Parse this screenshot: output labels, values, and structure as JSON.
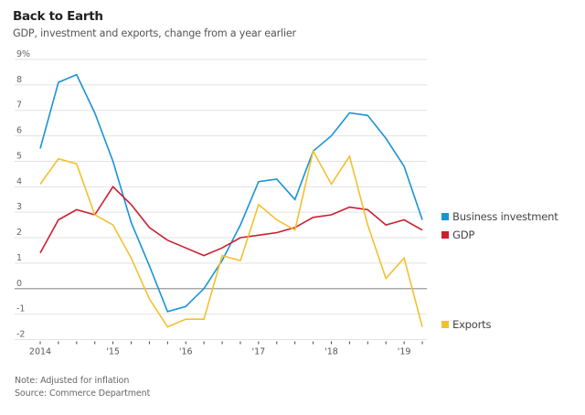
{
  "header": {
    "title": "Back to Earth",
    "subtitle": "GDP, investment and exports, change from a year earlier"
  },
  "footer": {
    "note": "Note: Adjusted for inflation",
    "source": "Source: Commerce Department"
  },
  "chart_data": {
    "type": "line",
    "title": "Back to Earth",
    "subtitle": "GDP, investment and exports, change from a year earlier",
    "xlabel": "",
    "ylabel": "",
    "unit": "%",
    "x": [
      "2014Q1",
      "2014Q2",
      "2014Q3",
      "2014Q4",
      "2015Q1",
      "2015Q2",
      "2015Q3",
      "2015Q4",
      "2016Q1",
      "2016Q2",
      "2016Q3",
      "2016Q4",
      "2017Q1",
      "2017Q2",
      "2017Q3",
      "2017Q4",
      "2018Q1",
      "2018Q2",
      "2018Q3",
      "2018Q4",
      "2019Q1",
      "2019Q2"
    ],
    "x_tick_labels": [
      {
        "index": 0,
        "label": "2014"
      },
      {
        "index": 4,
        "label": "'15"
      },
      {
        "index": 8,
        "label": "'16"
      },
      {
        "index": 12,
        "label": "'17"
      },
      {
        "index": 16,
        "label": "'18"
      },
      {
        "index": 20,
        "label": "'19"
      }
    ],
    "y_ticks": [
      9,
      8,
      7,
      6,
      5,
      4,
      3,
      2,
      1,
      0,
      -1,
      -2
    ],
    "y_tick_labels": [
      "9%",
      "8",
      "7",
      "6",
      "5",
      "4",
      "3",
      "2",
      "1",
      "0",
      "-1",
      "-2"
    ],
    "ylim": [
      -2,
      9
    ],
    "grid": true,
    "legend_placement": "right",
    "series": [
      {
        "name": "Business investment",
        "color": "#1a93d6",
        "values": [
          5.5,
          8.1,
          8.4,
          6.9,
          5.0,
          2.6,
          0.9,
          -0.9,
          -0.7,
          0.0,
          1.1,
          2.5,
          4.2,
          4.3,
          3.5,
          5.4,
          6.0,
          6.9,
          6.8,
          5.9,
          4.8,
          2.7
        ]
      },
      {
        "name": "GDP",
        "color": "#cc1f2f",
        "values": [
          1.4,
          2.7,
          3.1,
          2.9,
          4.0,
          3.3,
          2.4,
          1.9,
          1.6,
          1.3,
          1.6,
          2.0,
          2.1,
          2.2,
          2.4,
          2.8,
          2.9,
          3.2,
          3.1,
          2.5,
          2.7,
          2.3
        ]
      },
      {
        "name": "Exports",
        "color": "#f2c12e",
        "values": [
          4.1,
          5.1,
          4.9,
          2.9,
          2.5,
          1.2,
          -0.4,
          -1.5,
          -1.2,
          -1.2,
          1.3,
          1.1,
          3.3,
          2.7,
          2.3,
          5.4,
          4.1,
          5.2,
          2.5,
          0.4,
          1.2,
          -1.5
        ]
      }
    ]
  }
}
